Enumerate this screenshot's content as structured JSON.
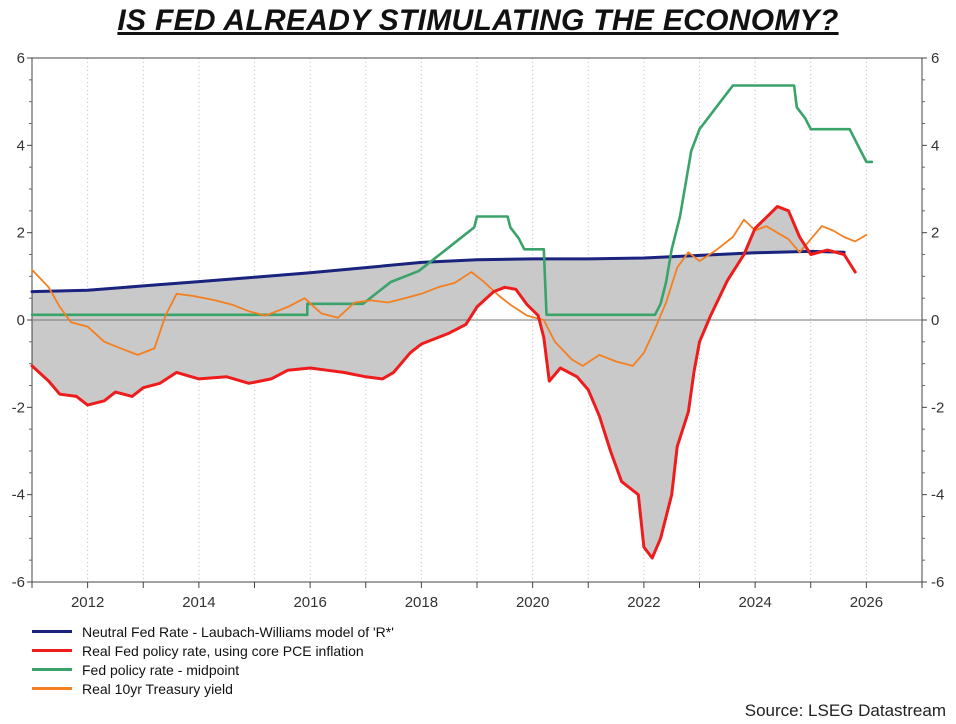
{
  "chart_data": {
    "type": "line",
    "title": "IS FED ALREADY STIMULATING THE ECONOMY?",
    "xlabel": "",
    "ylabel": "",
    "xlim": [
      2011.0,
      2027.0
    ],
    "ylim": [
      -6,
      6
    ],
    "x_ticks": [
      "2012",
      "2014",
      "2016",
      "2018",
      "2020",
      "2022",
      "2024",
      "2026"
    ],
    "y_ticks": [
      "-6",
      "-4",
      "-2",
      "0",
      "2",
      "4",
      "6"
    ],
    "grid": "vertical dotted",
    "dual_axis": true,
    "legend_position": "bottom-left",
    "shaded_area": "between neutral rate and real Fed policy rate",
    "series": [
      {
        "name": "Neutral Fed Rate - Laubach-Williams model of 'R*'",
        "color": "#1a237e",
        "points": [
          [
            2011.0,
            0.65
          ],
          [
            2012.0,
            0.68
          ],
          [
            2013.0,
            0.78
          ],
          [
            2014.0,
            0.88
          ],
          [
            2015.0,
            0.98
          ],
          [
            2016.0,
            1.08
          ],
          [
            2017.0,
            1.2
          ],
          [
            2018.0,
            1.32
          ],
          [
            2019.0,
            1.38
          ],
          [
            2020.0,
            1.4
          ],
          [
            2021.0,
            1.4
          ],
          [
            2022.0,
            1.42
          ],
          [
            2023.0,
            1.48
          ],
          [
            2024.0,
            1.54
          ],
          [
            2025.0,
            1.57
          ],
          [
            2025.6,
            1.55
          ]
        ]
      },
      {
        "name": "Real Fed policy rate, using core PCE inflation",
        "color": "#ee1c1c",
        "points": [
          [
            2011.0,
            -1.05
          ],
          [
            2011.3,
            -1.4
          ],
          [
            2011.5,
            -1.7
          ],
          [
            2011.8,
            -1.75
          ],
          [
            2012.0,
            -1.95
          ],
          [
            2012.3,
            -1.85
          ],
          [
            2012.5,
            -1.65
          ],
          [
            2012.8,
            -1.75
          ],
          [
            2013.0,
            -1.55
          ],
          [
            2013.3,
            -1.45
          ],
          [
            2013.6,
            -1.2
          ],
          [
            2014.0,
            -1.35
          ],
          [
            2014.5,
            -1.3
          ],
          [
            2014.9,
            -1.45
          ],
          [
            2015.3,
            -1.35
          ],
          [
            2015.6,
            -1.15
          ],
          [
            2016.0,
            -1.1
          ],
          [
            2016.3,
            -1.15
          ],
          [
            2016.6,
            -1.2
          ],
          [
            2017.0,
            -1.3
          ],
          [
            2017.3,
            -1.35
          ],
          [
            2017.5,
            -1.2
          ],
          [
            2017.8,
            -0.75
          ],
          [
            2018.0,
            -0.55
          ],
          [
            2018.5,
            -0.3
          ],
          [
            2018.8,
            -0.1
          ],
          [
            2019.0,
            0.3
          ],
          [
            2019.3,
            0.65
          ],
          [
            2019.5,
            0.75
          ],
          [
            2019.7,
            0.7
          ],
          [
            2019.9,
            0.35
          ],
          [
            2020.1,
            0.1
          ],
          [
            2020.2,
            -0.4
          ],
          [
            2020.3,
            -1.4
          ],
          [
            2020.5,
            -1.1
          ],
          [
            2020.8,
            -1.3
          ],
          [
            2021.0,
            -1.6
          ],
          [
            2021.2,
            -2.2
          ],
          [
            2021.4,
            -3.0
          ],
          [
            2021.6,
            -3.7
          ],
          [
            2021.9,
            -4.0
          ],
          [
            2022.0,
            -5.2
          ],
          [
            2022.15,
            -5.45
          ],
          [
            2022.3,
            -5.0
          ],
          [
            2022.5,
            -4.0
          ],
          [
            2022.6,
            -2.9
          ],
          [
            2022.8,
            -2.1
          ],
          [
            2022.9,
            -1.2
          ],
          [
            2023.0,
            -0.5
          ],
          [
            2023.2,
            0.1
          ],
          [
            2023.5,
            0.9
          ],
          [
            2023.8,
            1.5
          ],
          [
            2024.0,
            2.1
          ],
          [
            2024.2,
            2.35
          ],
          [
            2024.4,
            2.6
          ],
          [
            2024.6,
            2.5
          ],
          [
            2024.8,
            1.9
          ],
          [
            2025.0,
            1.5
          ],
          [
            2025.3,
            1.6
          ],
          [
            2025.6,
            1.5
          ],
          [
            2025.8,
            1.1
          ]
        ]
      },
      {
        "name": "Fed policy rate - midpoint",
        "color": "#3aa36a",
        "points": [
          [
            2011.0,
            0.12
          ],
          [
            2015.95,
            0.12
          ],
          [
            2015.95,
            0.37
          ],
          [
            2016.95,
            0.37
          ],
          [
            2017.2,
            0.62
          ],
          [
            2017.45,
            0.87
          ],
          [
            2017.95,
            1.12
          ],
          [
            2018.2,
            1.37
          ],
          [
            2018.45,
            1.62
          ],
          [
            2018.7,
            1.87
          ],
          [
            2018.95,
            2.12
          ],
          [
            2019.0,
            2.37
          ],
          [
            2019.55,
            2.37
          ],
          [
            2019.6,
            2.12
          ],
          [
            2019.75,
            1.87
          ],
          [
            2019.85,
            1.62
          ],
          [
            2020.2,
            1.62
          ],
          [
            2020.25,
            0.12
          ],
          [
            2022.2,
            0.12
          ],
          [
            2022.3,
            0.37
          ],
          [
            2022.4,
            0.87
          ],
          [
            2022.5,
            1.62
          ],
          [
            2022.65,
            2.37
          ],
          [
            2022.75,
            3.12
          ],
          [
            2022.85,
            3.87
          ],
          [
            2023.0,
            4.37
          ],
          [
            2023.15,
            4.62
          ],
          [
            2023.3,
            4.87
          ],
          [
            2023.45,
            5.12
          ],
          [
            2023.6,
            5.37
          ],
          [
            2024.7,
            5.37
          ],
          [
            2024.75,
            4.87
          ],
          [
            2024.9,
            4.62
          ],
          [
            2025.0,
            4.37
          ],
          [
            2025.7,
            4.37
          ],
          [
            2025.8,
            4.12
          ],
          [
            2025.9,
            3.87
          ],
          [
            2026.0,
            3.62
          ],
          [
            2026.1,
            3.62
          ]
        ]
      },
      {
        "name": "Real 10yr Treasury yield",
        "color": "#f47f20",
        "points": [
          [
            2011.0,
            1.15
          ],
          [
            2011.3,
            0.75
          ],
          [
            2011.5,
            0.3
          ],
          [
            2011.7,
            -0.05
          ],
          [
            2012.0,
            -0.15
          ],
          [
            2012.3,
            -0.5
          ],
          [
            2012.6,
            -0.65
          ],
          [
            2012.9,
            -0.8
          ],
          [
            2013.2,
            -0.65
          ],
          [
            2013.4,
            0.1
          ],
          [
            2013.6,
            0.6
          ],
          [
            2013.9,
            0.55
          ],
          [
            2014.3,
            0.45
          ],
          [
            2014.6,
            0.35
          ],
          [
            2014.9,
            0.2
          ],
          [
            2015.2,
            0.1
          ],
          [
            2015.6,
            0.3
          ],
          [
            2015.9,
            0.5
          ],
          [
            2016.2,
            0.15
          ],
          [
            2016.5,
            0.05
          ],
          [
            2016.8,
            0.4
          ],
          [
            2017.1,
            0.45
          ],
          [
            2017.4,
            0.4
          ],
          [
            2017.7,
            0.5
          ],
          [
            2018.0,
            0.6
          ],
          [
            2018.3,
            0.75
          ],
          [
            2018.6,
            0.85
          ],
          [
            2018.9,
            1.1
          ],
          [
            2019.1,
            0.9
          ],
          [
            2019.4,
            0.55
          ],
          [
            2019.6,
            0.35
          ],
          [
            2019.9,
            0.1
          ],
          [
            2020.2,
            0.0
          ],
          [
            2020.4,
            -0.5
          ],
          [
            2020.7,
            -0.9
          ],
          [
            2020.9,
            -1.05
          ],
          [
            2021.2,
            -0.8
          ],
          [
            2021.5,
            -0.95
          ],
          [
            2021.8,
            -1.05
          ],
          [
            2022.0,
            -0.75
          ],
          [
            2022.2,
            -0.2
          ],
          [
            2022.4,
            0.4
          ],
          [
            2022.6,
            1.2
          ],
          [
            2022.8,
            1.55
          ],
          [
            2023.0,
            1.35
          ],
          [
            2023.3,
            1.6
          ],
          [
            2023.6,
            1.9
          ],
          [
            2023.8,
            2.3
          ],
          [
            2024.0,
            2.05
          ],
          [
            2024.2,
            2.15
          ],
          [
            2024.4,
            2.0
          ],
          [
            2024.6,
            1.85
          ],
          [
            2024.8,
            1.55
          ],
          [
            2025.0,
            1.85
          ],
          [
            2025.2,
            2.15
          ],
          [
            2025.4,
            2.05
          ],
          [
            2025.6,
            1.9
          ],
          [
            2025.8,
            1.8
          ],
          [
            2026.0,
            1.95
          ]
        ]
      }
    ]
  },
  "source_label": "Source: LSEG Datastream"
}
